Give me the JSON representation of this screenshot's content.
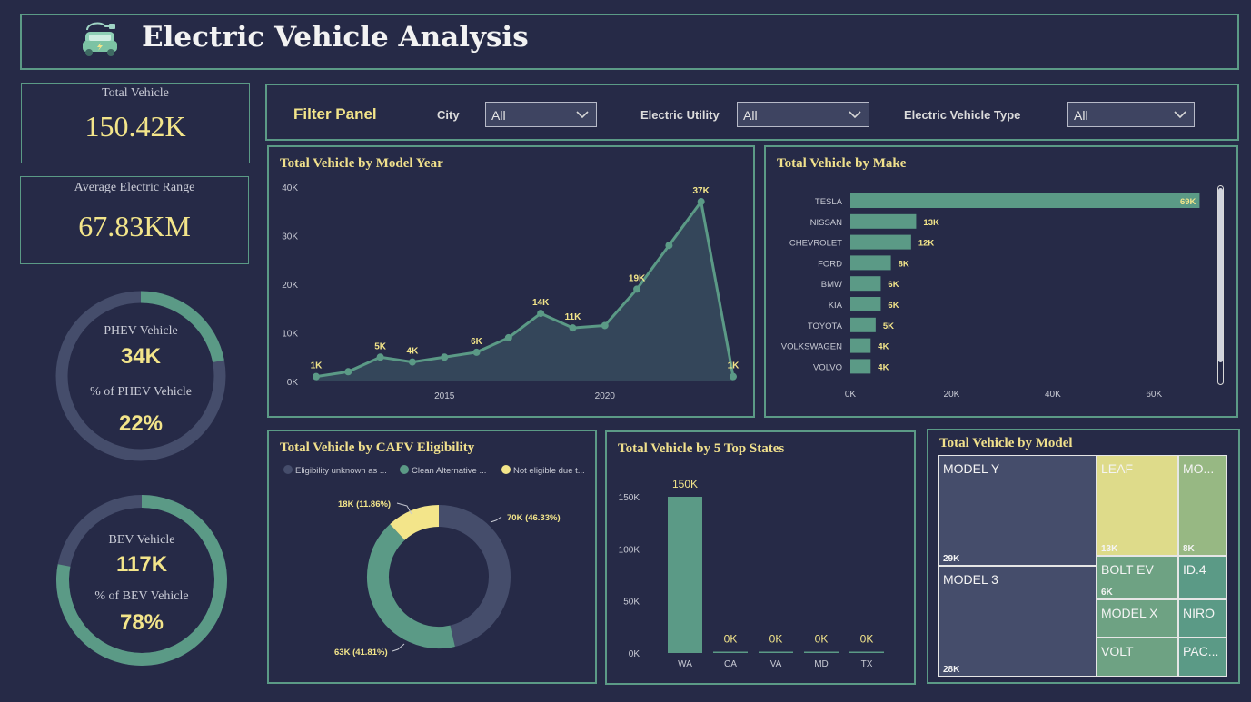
{
  "header": {
    "title": "Electric Vehicle Analysis",
    "icon": "electric-car-icon"
  },
  "kpis": {
    "total_vehicle": {
      "label": "Total Vehicle",
      "value": "150.42K"
    },
    "avg_range": {
      "label": "Average Electric Range",
      "value": "67.83KM"
    }
  },
  "donut_phev": {
    "label": "PHEV Vehicle",
    "value": "34K",
    "pct_label": "% of PHEV Vehicle",
    "pct": "22%",
    "fraction": 0.22
  },
  "donut_bev": {
    "label": "BEV Vehicle",
    "value": "117K",
    "pct_label": "% of BEV Vehicle",
    "pct": "78%",
    "fraction": 0.78
  },
  "filter": {
    "title": "Filter Panel",
    "city_label": "City",
    "city_value": "All",
    "utility_label": "Electric Utility",
    "utility_value": "All",
    "type_label": "Electric Vehicle Type",
    "type_value": "All"
  },
  "colors": {
    "accent": "#5b9a86",
    "yellow": "#f3e58a",
    "background": "#262a47",
    "slate": "#454d6b"
  },
  "chart_data": [
    {
      "id": "model_year",
      "type": "area",
      "title": "Total Vehicle by Model Year",
      "x": [
        2011,
        2012,
        2013,
        2014,
        2015,
        2016,
        2017,
        2018,
        2019,
        2020,
        2021,
        2022,
        2023,
        2024
      ],
      "values": [
        1,
        2,
        5,
        4,
        5,
        6,
        9,
        14,
        11,
        11.5,
        19,
        28,
        37,
        1
      ],
      "data_labels": {
        "2011": "1K",
        "2013": "5K",
        "2014": "4K",
        "2016": "6K",
        "2018": "14K",
        "2019": "11K",
        "2021": "19K",
        "2023": "37K",
        "2024": "1K"
      },
      "x_ticks": [
        "2015",
        "2020"
      ],
      "y_ticks": [
        "0K",
        "10K",
        "20K",
        "30K",
        "40K"
      ],
      "ylim": [
        0,
        40
      ]
    },
    {
      "id": "make",
      "type": "bar",
      "title": "Total Vehicle by Make",
      "categories": [
        "TESLA",
        "NISSAN",
        "CHEVROLET",
        "FORD",
        "BMW",
        "KIA",
        "TOYOTA",
        "VOLKSWAGEN",
        "VOLVO"
      ],
      "values": [
        69,
        13,
        12,
        8,
        6,
        6,
        5,
        4,
        4
      ],
      "labels": [
        "69K",
        "13K",
        "12K",
        "8K",
        "6K",
        "6K",
        "5K",
        "4K",
        "4K"
      ],
      "x_ticks": [
        "0K",
        "20K",
        "40K",
        "60K"
      ],
      "xlim": [
        0,
        70
      ]
    },
    {
      "id": "cafv",
      "type": "pie",
      "title": "Total Vehicle by CAFV Eligibility",
      "legend": [
        "Eligibility unknown as ...",
        "Clean Alternative ...",
        "Not eligible due t..."
      ],
      "values": [
        70,
        63,
        18
      ],
      "labels": [
        "70K (46.33%)",
        "63K (41.81%)",
        "18K (11.86%)"
      ],
      "colors": [
        "#454d6b",
        "#5b9a86",
        "#f3e58a"
      ]
    },
    {
      "id": "states",
      "type": "bar",
      "title": "Total Vehicle by 5 Top States",
      "categories": [
        "WA",
        "CA",
        "VA",
        "MD",
        "TX"
      ],
      "values": [
        150,
        0.3,
        0.2,
        0.2,
        0.1
      ],
      "labels": [
        "150K",
        "0K",
        "0K",
        "0K",
        "0K"
      ],
      "y_ticks": [
        "0K",
        "50K",
        "100K",
        "150K"
      ],
      "ylim": [
        0,
        150
      ]
    },
    {
      "id": "model",
      "type": "heatmap",
      "title": "Total Vehicle by Model",
      "cells": [
        {
          "name": "MODEL Y",
          "value": "29K",
          "color": "#454d6b"
        },
        {
          "name": "MODEL 3",
          "value": "28K",
          "color": "#454d6b"
        },
        {
          "name": "LEAF",
          "value": "13K",
          "color": "#dedb8a"
        },
        {
          "name": "MO...",
          "value": "8K",
          "color": "#97b883"
        },
        {
          "name": "BOLT EV",
          "value": "6K",
          "color": "#6ea283"
        },
        {
          "name": "ID.4",
          "value": "",
          "color": "#5b9a86"
        },
        {
          "name": "MODEL X",
          "value": "",
          "color": "#6ea283"
        },
        {
          "name": "NIRO",
          "value": "",
          "color": "#5b9a86"
        },
        {
          "name": "VOLT",
          "value": "",
          "color": "#6ea283"
        },
        {
          "name": "PAC...",
          "value": "",
          "color": "#5b9a86"
        }
      ]
    }
  ]
}
